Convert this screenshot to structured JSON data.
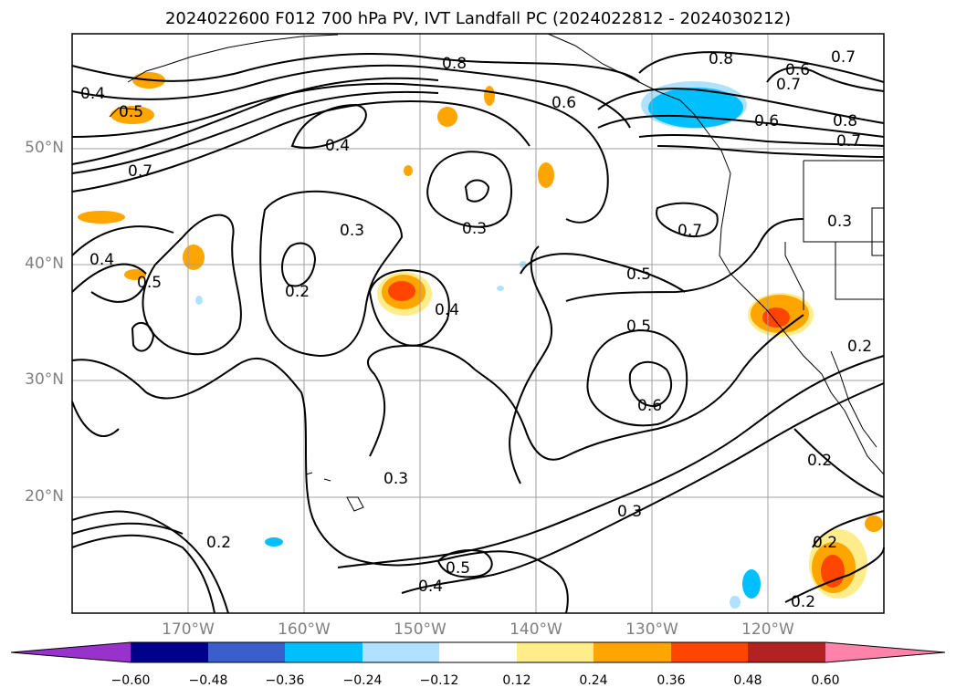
{
  "title": "2024022600 F012 700 hPa PV, IVT Landfall PC (2024022812 - 2024030212)",
  "lat_labels": [
    "50°N",
    "40°N",
    "30°N",
    "20°N"
  ],
  "lon_labels": [
    "170°W",
    "160°W",
    "150°W",
    "140°W",
    "130°W",
    "120°W"
  ],
  "colorbar": {
    "ticks": [
      "−0.60",
      "−0.48",
      "−0.36",
      "−0.24",
      "−0.12",
      "0.12",
      "0.24",
      "0.36",
      "0.48",
      "0.60"
    ],
    "colors": [
      "#9932cc",
      "#00008b",
      "#3a5fcd",
      "#00bfff",
      "#b0e2ff",
      "#ffffff",
      "#ffec8b",
      "#ffa500",
      "#ff4500",
      "#b22222",
      "#ff82ab"
    ]
  },
  "contour_labels": [
    "0.8",
    "0.6",
    "0.8",
    "0.6",
    "0.7",
    "0.7",
    "0.6",
    "0.8",
    "0.7",
    "0.4",
    "0.5",
    "0.4",
    "0.7",
    "0.3",
    "0.3",
    "0.7",
    "0.3",
    "0.4",
    "0.5",
    "0.2",
    "0.4",
    "0.5",
    "0.5",
    "0.6",
    "0.2",
    "0.3",
    "0.3",
    "0.2",
    "0.2",
    "0.4",
    "0.5",
    "0.2",
    "0.2"
  ],
  "map": {
    "lat_range": [
      10,
      60
    ],
    "lon_range": [
      -180,
      -110
    ],
    "gridlines": true
  }
}
